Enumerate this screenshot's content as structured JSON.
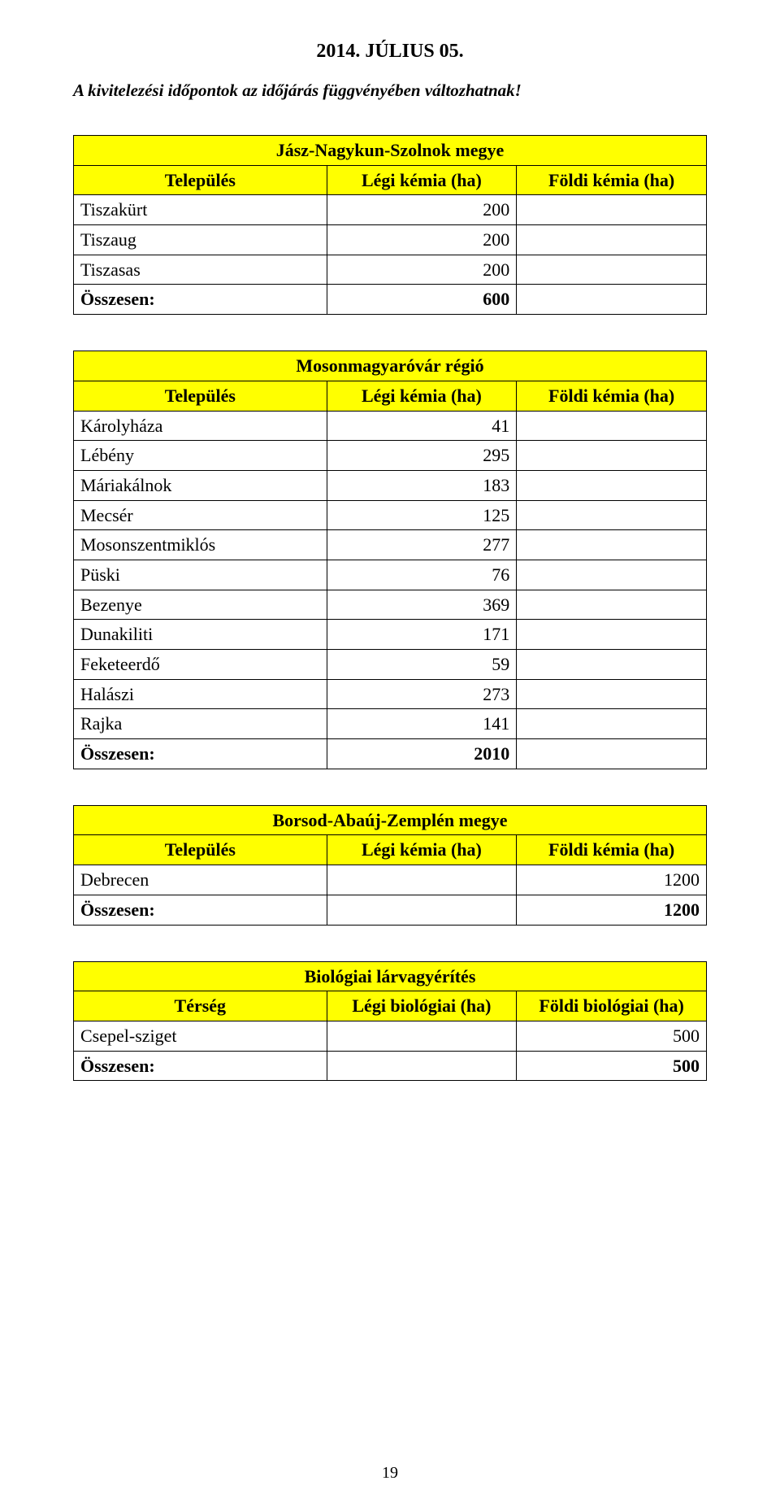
{
  "page": {
    "date_title": "2014. JÚLIUS 05.",
    "note": "A kivitelezési időpontok az időjárás függvényében változhatnak!",
    "page_number": "19"
  },
  "colors": {
    "background": "#ffffff",
    "text": "#000000",
    "header_bg": "#ffff00",
    "border": "#000000"
  },
  "common": {
    "col_settlement": "Település",
    "col_air_chem": "Légi kémia (ha)",
    "col_ground_chem": "Földi kémia (ha)"
  },
  "table1": {
    "title": "Jász-Nagykun-Szolnok megye",
    "rows": [
      {
        "name": "Tiszakürt",
        "air": "200",
        "ground": ""
      },
      {
        "name": "Tiszaug",
        "air": "200",
        "ground": ""
      },
      {
        "name": "Tiszasas",
        "air": "200",
        "ground": ""
      }
    ],
    "total_label": "Összesen:",
    "total_air": "600",
    "total_ground": ""
  },
  "table2": {
    "title": "Mosonmagyaróvár régió",
    "rows": [
      {
        "name": "Károlyháza",
        "air": "41",
        "ground": ""
      },
      {
        "name": "Lébény",
        "air": "295",
        "ground": ""
      },
      {
        "name": "Máriakálnok",
        "air": "183",
        "ground": ""
      },
      {
        "name": "Mecsér",
        "air": "125",
        "ground": ""
      },
      {
        "name": "Mosonszentmiklós",
        "air": "277",
        "ground": ""
      },
      {
        "name": "Püski",
        "air": "76",
        "ground": ""
      },
      {
        "name": "Bezenye",
        "air": "369",
        "ground": ""
      },
      {
        "name": "Dunakiliti",
        "air": "171",
        "ground": ""
      },
      {
        "name": "Feketeerdő",
        "air": "59",
        "ground": ""
      },
      {
        "name": "Halászi",
        "air": "273",
        "ground": ""
      },
      {
        "name": "Rajka",
        "air": "141",
        "ground": ""
      }
    ],
    "total_label": "Összesen:",
    "total_air": "2010",
    "total_ground": ""
  },
  "table3": {
    "title": "Borsod-Abaúj-Zemplén megye",
    "rows": [
      {
        "name": "Debrecen",
        "air": "",
        "ground": "1200"
      }
    ],
    "total_label": "Összesen:",
    "total_air": "",
    "total_ground": "1200"
  },
  "table4": {
    "title": "Biológiai lárvagyérítés",
    "col1": "Térség",
    "col2": "Légi biológiai (ha)",
    "col3": "Földi biológiai (ha)",
    "rows": [
      {
        "name": "Csepel-sziget",
        "air": "",
        "ground": "500"
      }
    ],
    "total_label": "Összesen:",
    "total_air": "",
    "total_ground": "500"
  }
}
